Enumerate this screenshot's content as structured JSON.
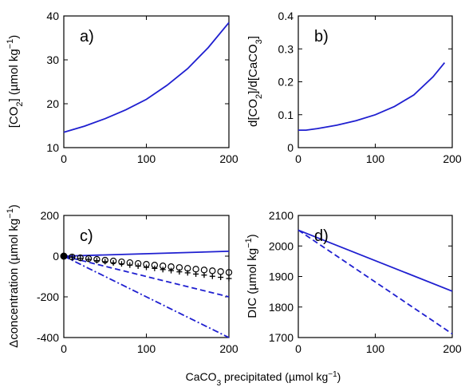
{
  "figure": {
    "xlabel_main": "CaCO",
    "xlabel_sub": "3",
    "xlabel_rest": " precipitated (µmol kg",
    "xlabel_sup": "−1",
    "xlabel_close": ")"
  },
  "chart_data": [
    {
      "panel": "a)",
      "type": "line",
      "ylabel": [
        {
          "t": "[CO"
        },
        {
          "t": "2",
          "sub": true
        },
        {
          "t": "] (µmol kg"
        },
        {
          "t": "−1",
          "sup": true
        },
        {
          "t": ")"
        }
      ],
      "xlim": [
        0,
        200
      ],
      "ylim": [
        10,
        40
      ],
      "xticks": [
        0,
        100,
        200
      ],
      "yticks": [
        10,
        20,
        30,
        40
      ],
      "series": [
        {
          "color": "#1f1fd0",
          "dash": "solid",
          "x": [
            0,
            25,
            50,
            75,
            100,
            125,
            150,
            175,
            200
          ],
          "y": [
            13.5,
            14.9,
            16.6,
            18.6,
            21.0,
            24.2,
            28.0,
            32.8,
            38.5
          ]
        }
      ]
    },
    {
      "panel": "b)",
      "type": "line",
      "ylabel": [
        {
          "t": "d[CO"
        },
        {
          "t": "2",
          "sub": true
        },
        {
          "t": "]/d[CaCO"
        },
        {
          "t": "3",
          "sub": true
        },
        {
          "t": "]"
        }
      ],
      "xlim": [
        0,
        200
      ],
      "ylim": [
        0,
        0.4
      ],
      "xticks": [
        0,
        100,
        200
      ],
      "yticks": [
        0,
        0.1,
        0.2,
        0.3,
        0.4
      ],
      "ytick_labels": [
        "0",
        "0.1",
        "0.2",
        "0.3",
        "0.4"
      ],
      "series": [
        {
          "color": "#1f1fd0",
          "dash": "solid",
          "x": [
            0,
            10,
            25,
            50,
            75,
            100,
            125,
            150,
            175,
            190
          ],
          "y": [
            0.053,
            0.053,
            0.058,
            0.068,
            0.082,
            0.1,
            0.125,
            0.16,
            0.215,
            0.258
          ]
        }
      ]
    },
    {
      "panel": "c)",
      "type": "line",
      "ylabel": [
        {
          "t": "Δconcentration (µmol kg"
        },
        {
          "t": "−1",
          "sup": true
        },
        {
          "t": ")"
        }
      ],
      "xlim": [
        0,
        200
      ],
      "ylim": [
        -400,
        200
      ],
      "xticks": [
        0,
        100,
        200
      ],
      "yticks": [
        -400,
        -200,
        0,
        200
      ],
      "ytick_labels": [
        "-400",
        "-200",
        "0",
        "200"
      ],
      "series": [
        {
          "color": "#1f1fd0",
          "dash": "solid",
          "x": [
            0,
            200
          ],
          "y": [
            0,
            24
          ]
        },
        {
          "color": "#1f1fd0",
          "dash": "dashed",
          "x": [
            0,
            200
          ],
          "y": [
            0,
            -200
          ]
        },
        {
          "color": "#1f1fd0",
          "dash": "dashdot",
          "x": [
            0,
            200
          ],
          "y": [
            0,
            -400
          ]
        }
      ],
      "markers": [
        {
          "symbol": "circle-filled",
          "x": [
            0
          ],
          "y": [
            0
          ]
        },
        {
          "symbol": "circle-open",
          "x": [
            10,
            20,
            30,
            40,
            50,
            60,
            70,
            80,
            90,
            100,
            110,
            120,
            130,
            140,
            150,
            160,
            170,
            180,
            190,
            200
          ],
          "y": [
            -4,
            -8,
            -12,
            -16,
            -20,
            -24,
            -28,
            -32,
            -36,
            -40,
            -44,
            -48,
            -52,
            -56,
            -60,
            -64,
            -68,
            -72,
            -76,
            -80
          ]
        },
        {
          "symbol": "plus",
          "x": [
            10,
            20,
            30,
            40,
            50,
            60,
            70,
            80,
            90,
            100,
            110,
            120,
            130,
            140,
            150,
            160,
            170,
            180,
            190,
            200
          ],
          "y": [
            -5,
            -11,
            -16,
            -22,
            -27,
            -33,
            -38,
            -44,
            -49,
            -55,
            -60,
            -66,
            -71,
            -77,
            -82,
            -88,
            -93,
            -99,
            -104,
            -110
          ]
        }
      ]
    },
    {
      "panel": "d)",
      "type": "line",
      "ylabel": [
        {
          "t": "DIC (µmol kg"
        },
        {
          "t": "−1",
          "sup": true
        },
        {
          "t": ")"
        }
      ],
      "xlim": [
        0,
        200
      ],
      "ylim": [
        1700,
        2100
      ],
      "xticks": [
        0,
        100,
        200
      ],
      "yticks": [
        1700,
        1800,
        1900,
        2000,
        2100
      ],
      "series": [
        {
          "color": "#1f1fd0",
          "dash": "solid",
          "x": [
            0,
            200
          ],
          "y": [
            2052,
            1852
          ]
        },
        {
          "color": "#1f1fd0",
          "dash": "dashed",
          "x": [
            0,
            200
          ],
          "y": [
            2052,
            1712
          ]
        }
      ]
    }
  ]
}
